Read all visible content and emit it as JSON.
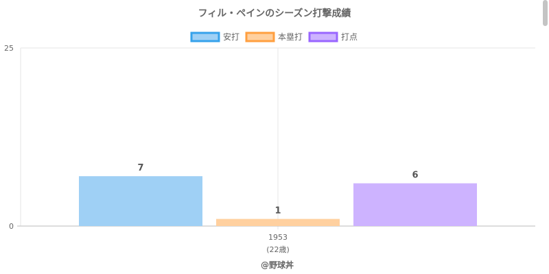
{
  "chart_data": {
    "type": "bar",
    "title": "フィル・ペインのシーズン打撃成績",
    "categories": [
      "1953"
    ],
    "category_sublabels": [
      "(22歳)"
    ],
    "series": [
      {
        "name": "安打",
        "values": [
          7
        ],
        "fill": "#9fd0f5",
        "border": "#36a2eb"
      },
      {
        "name": "本塁打",
        "values": [
          1
        ],
        "fill": "#ffd09f",
        "border": "#ff9f40"
      },
      {
        "name": "打点",
        "values": [
          6
        ],
        "fill": "#cdb3ff",
        "border": "#9966ff"
      }
    ],
    "ylim": [
      0,
      25
    ],
    "y_ticks": [
      0,
      25
    ],
    "grid": true,
    "legend_position": "top",
    "data_labels": true
  },
  "credit": "@野球丼"
}
